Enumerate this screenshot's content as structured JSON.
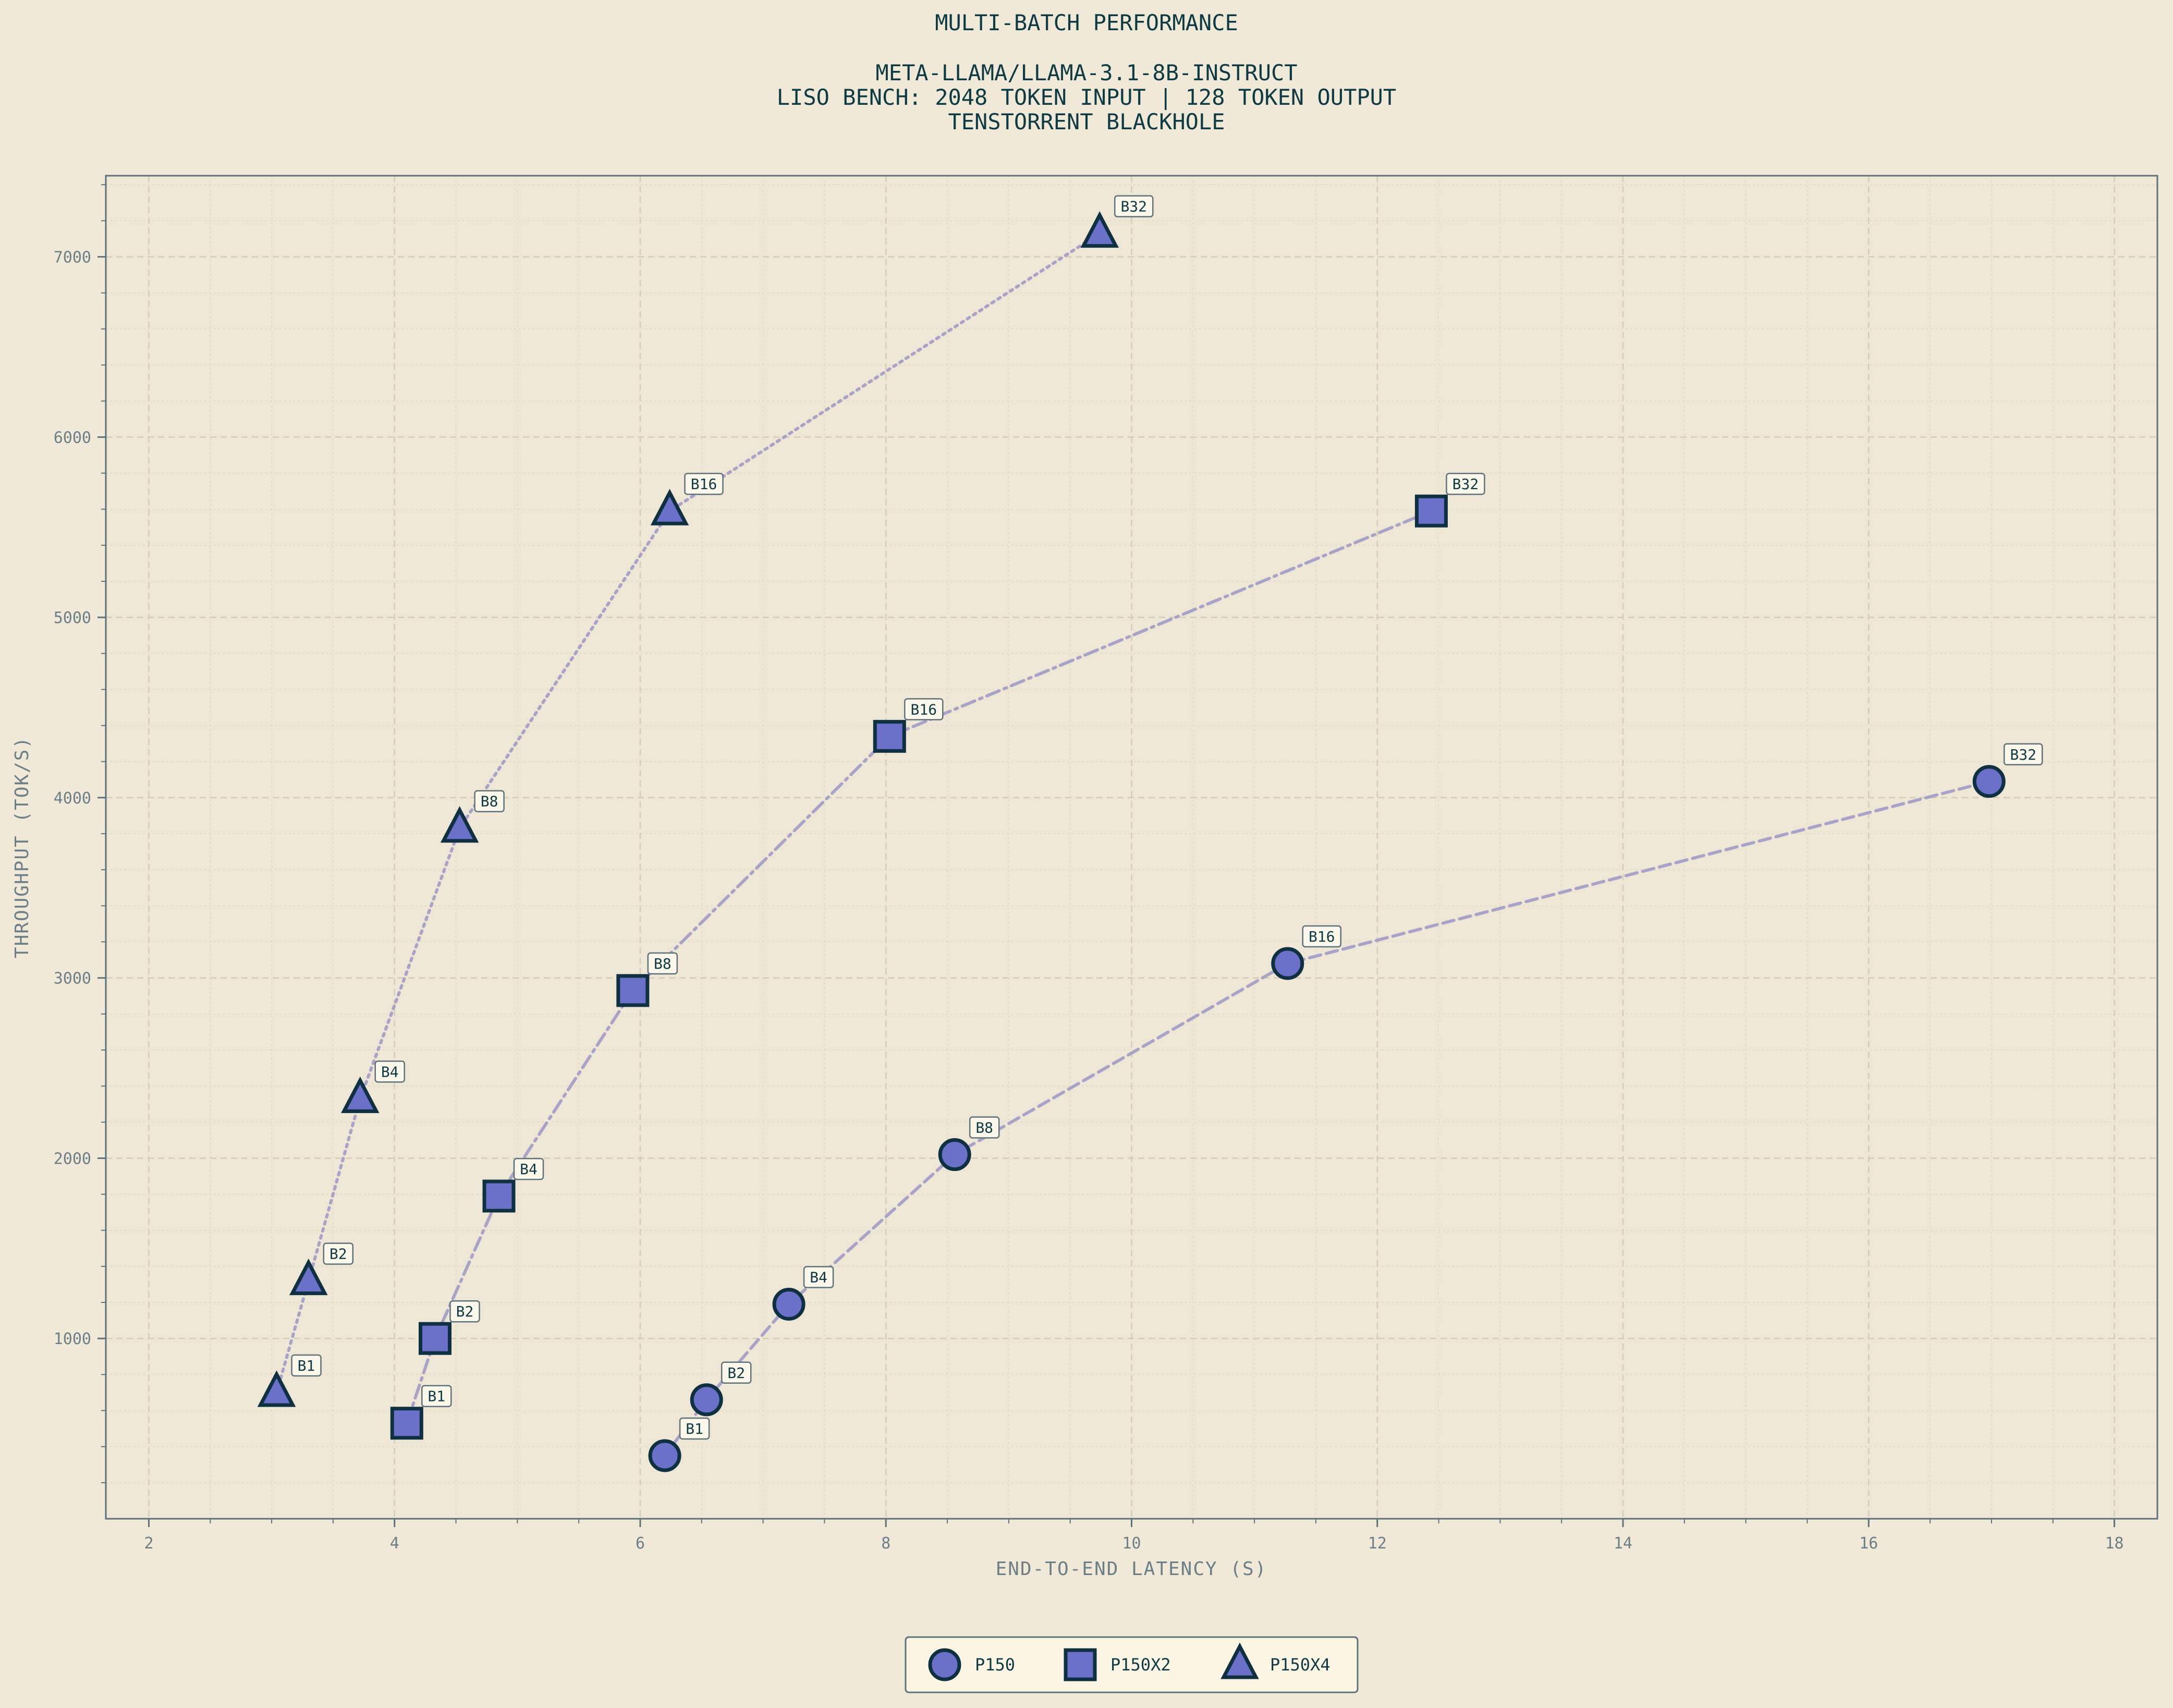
{
  "chart_data": {
    "type": "scatter",
    "title_lines": [
      "MULTI-BATCH PERFORMANCE",
      "",
      "META-LLAMA/LLAMA-3.1-8B-INSTRUCT",
      "LISO BENCH: 2048 TOKEN INPUT | 128 TOKEN OUTPUT",
      "TENSTORRENT BLACKHOLE"
    ],
    "xlabel": "END-TO-END LATENCY (S)",
    "ylabel": "THROUGHPUT (TOK/S)",
    "xlim": [
      1.65,
      18.35
    ],
    "ylim": [
      0,
      7450
    ],
    "x_ticks": [
      2,
      4,
      6,
      8,
      10,
      12,
      14,
      16,
      18
    ],
    "y_ticks": [
      1000,
      2000,
      3000,
      4000,
      5000,
      6000,
      7000
    ],
    "grid": true,
    "legend_position": "bottom-center",
    "colors": {
      "background": "#f0e9d8",
      "marker_fill": "#6b70c8",
      "marker_edge": "#0e3040",
      "line": "#a9a3c8",
      "text": "#0e3a43",
      "axis_text": "#6c7e86",
      "grid": "#d9d0bd"
    },
    "series": [
      {
        "name": "P150",
        "marker": "circle",
        "line_style": "dashed",
        "points": [
          {
            "x": 6.2,
            "y": 350,
            "label": "B1"
          },
          {
            "x": 6.54,
            "y": 660,
            "label": "B2"
          },
          {
            "x": 7.21,
            "y": 1190,
            "label": "B4"
          },
          {
            "x": 8.56,
            "y": 2020,
            "label": "B8"
          },
          {
            "x": 11.27,
            "y": 3080,
            "label": "B16"
          },
          {
            "x": 16.98,
            "y": 4090,
            "label": "B32"
          }
        ]
      },
      {
        "name": "P150X2",
        "marker": "square",
        "line_style": "dashdot",
        "points": [
          {
            "x": 4.1,
            "y": 530,
            "label": "B1"
          },
          {
            "x": 4.33,
            "y": 1000,
            "label": "B2"
          },
          {
            "x": 4.85,
            "y": 1790,
            "label": "B4"
          },
          {
            "x": 5.94,
            "y": 2930,
            "label": "B8"
          },
          {
            "x": 8.03,
            "y": 4340,
            "label": "B16"
          },
          {
            "x": 12.44,
            "y": 5590,
            "label": "B32"
          }
        ]
      },
      {
        "name": "P150X4",
        "marker": "triangle",
        "line_style": "dotted",
        "points": [
          {
            "x": 3.04,
            "y": 700,
            "label": "B1"
          },
          {
            "x": 3.3,
            "y": 1320,
            "label": "B2"
          },
          {
            "x": 3.72,
            "y": 2330,
            "label": "B4"
          },
          {
            "x": 4.53,
            "y": 3830,
            "label": "B8"
          },
          {
            "x": 6.24,
            "y": 5590,
            "label": "B16"
          },
          {
            "x": 9.74,
            "y": 7130,
            "label": "B32"
          }
        ]
      }
    ]
  }
}
